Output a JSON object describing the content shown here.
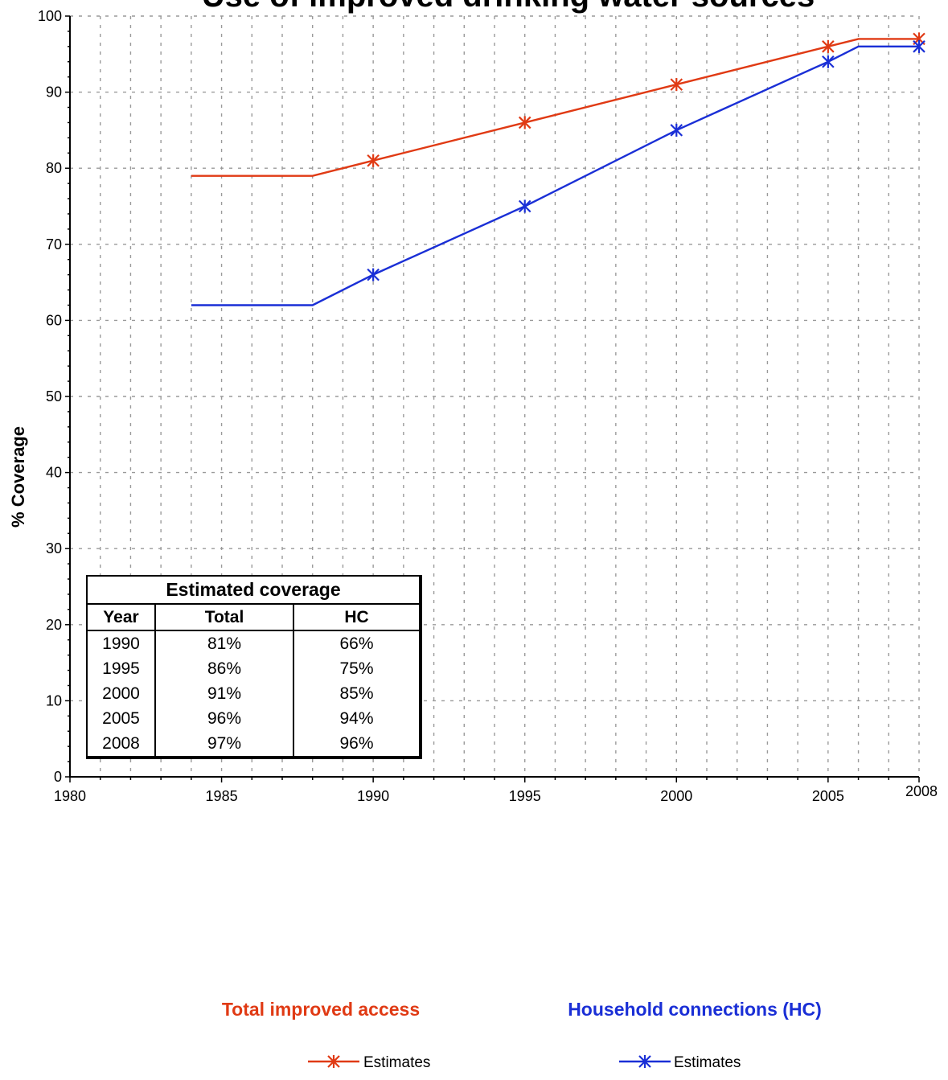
{
  "chart_data": {
    "type": "line",
    "title": "Use of improved drinking water sources",
    "ylabel": "% Coverage",
    "xlim": [
      1980,
      2008
    ],
    "ylim": [
      0,
      100
    ],
    "x_ticks": [
      1980,
      1985,
      1990,
      1995,
      2000,
      2005,
      2008
    ],
    "y_ticks": [
      0,
      10,
      20,
      30,
      40,
      50,
      60,
      70,
      80,
      90,
      100
    ],
    "grid": true,
    "series": [
      {
        "name": "Total improved access",
        "legend_label": "Estimates",
        "color": "#E03A14",
        "x": [
          1984,
          1988,
          1990,
          1995,
          2000,
          2005,
          2006,
          2008
        ],
        "y": [
          79,
          79,
          81,
          86,
          91,
          96,
          97,
          97
        ],
        "marker_x": [
          1990,
          1995,
          2000,
          2005,
          2008
        ],
        "marker_y": [
          81,
          86,
          91,
          96,
          97
        ]
      },
      {
        "name": "Household connections (HC)",
        "legend_label": "Estimates",
        "color": "#1A2FD6",
        "x": [
          1984,
          1988,
          1990,
          1995,
          2000,
          2005,
          2006,
          2008
        ],
        "y": [
          62,
          62,
          66,
          75,
          85,
          94,
          96,
          96
        ],
        "marker_x": [
          1990,
          1995,
          2000,
          2005,
          2008
        ],
        "marker_y": [
          66,
          75,
          85,
          94,
          96
        ]
      }
    ],
    "table": {
      "caption": "Estimated coverage",
      "columns": [
        "Year",
        "Total",
        "HC"
      ],
      "rows": [
        [
          "1990",
          "81%",
          "66%"
        ],
        [
          "1995",
          "86%",
          "75%"
        ],
        [
          "2000",
          "91%",
          "85%"
        ],
        [
          "2005",
          "96%",
          "94%"
        ],
        [
          "2008",
          "97%",
          "96%"
        ]
      ]
    }
  }
}
